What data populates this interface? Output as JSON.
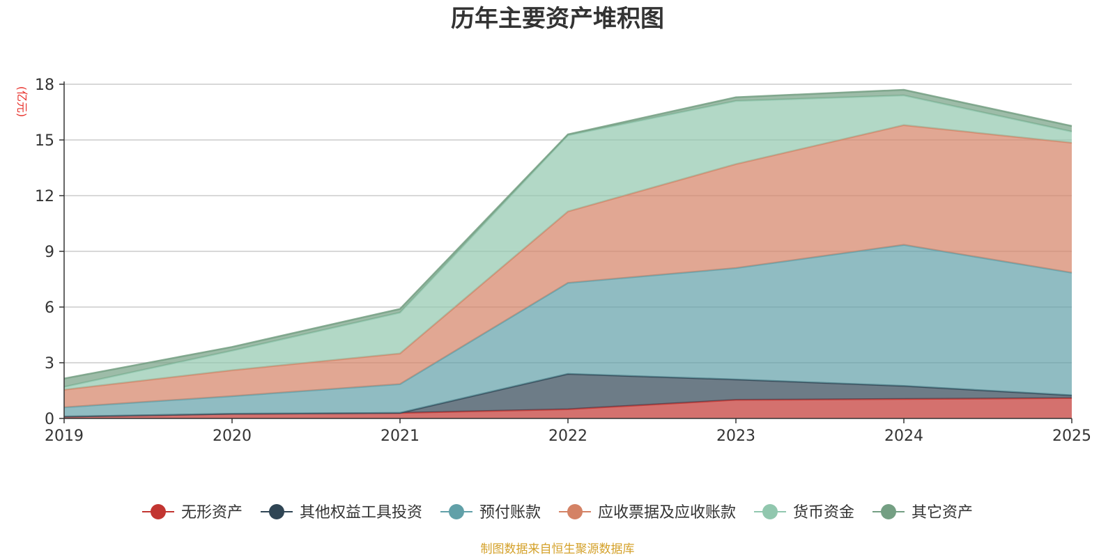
{
  "chart_data": {
    "type": "area",
    "stacked": true,
    "title": "历年主要资产堆积图",
    "unit_label": "(亿元)",
    "x": [
      "2019",
      "2020",
      "2021",
      "2022",
      "2023",
      "2024",
      "2025"
    ],
    "ylim": [
      0,
      18
    ],
    "yticks": [
      "0",
      "3",
      "6",
      "9",
      "12",
      "15",
      "18"
    ],
    "grid": true,
    "legend_position": "bottom",
    "series": [
      {
        "name": "无形资产",
        "color": "#c23531",
        "values": [
          0.1,
          0.25,
          0.3,
          0.5,
          1.0,
          1.05,
          1.1
        ]
      },
      {
        "name": "其他权益工具投资",
        "color": "#2f4554",
        "values": [
          0.0,
          0.0,
          0.0,
          1.9,
          1.1,
          0.7,
          0.15
        ]
      },
      {
        "name": "预付账款",
        "color": "#61a0a8",
        "values": [
          0.5,
          0.95,
          1.55,
          4.9,
          6.0,
          7.6,
          6.6
        ]
      },
      {
        "name": "应收票据及应收账款",
        "color": "#d48265",
        "values": [
          0.95,
          1.4,
          1.65,
          3.85,
          5.6,
          6.45,
          7.0
        ]
      },
      {
        "name": "货币资金",
        "color": "#91c7ae",
        "values": [
          0.15,
          1.05,
          2.2,
          4.1,
          3.4,
          1.6,
          0.6
        ]
      },
      {
        "name": "其它资产",
        "color": "#749f83",
        "values": [
          0.45,
          0.2,
          0.2,
          0.05,
          0.2,
          0.3,
          0.3
        ]
      }
    ]
  },
  "source_text": "制图数据来自恒生聚源数据库"
}
